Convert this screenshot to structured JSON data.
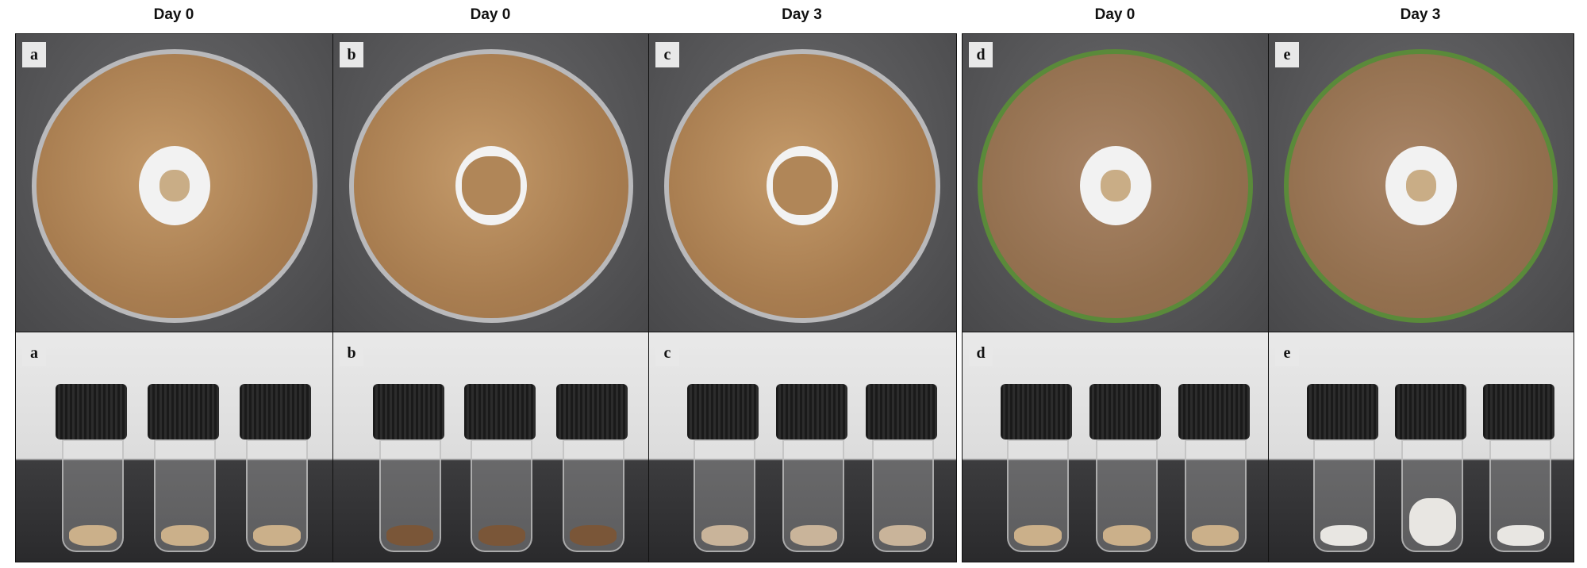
{
  "headers": [
    "Day 0",
    "Day 0",
    "Day 3",
    "Day 0",
    "Day 3"
  ],
  "panels": [
    {
      "label": "a",
      "dish_rim": "clear",
      "sample": "fungal mat",
      "vial_content": "fungal mat"
    },
    {
      "label": "b",
      "dish_rim": "clear",
      "sample": "soil",
      "vial_content": "soil"
    },
    {
      "label": "c",
      "dish_rim": "clear",
      "sample": "soil with hyphae",
      "vial_content": "soil with white mycelium"
    },
    {
      "label": "d",
      "dish_rim": "green",
      "sample": "fungal mat",
      "vial_content": "fungal mat"
    },
    {
      "label": "e",
      "dish_rim": "green",
      "sample": "fungal mat with hyphae",
      "vial_content": "fungal mat with white mycelium"
    }
  ],
  "colors": {
    "soil": "#a87d50",
    "dish_rim_green": "#5a8a3a",
    "cap": "#1a1a1a",
    "background": "#48484a"
  }
}
